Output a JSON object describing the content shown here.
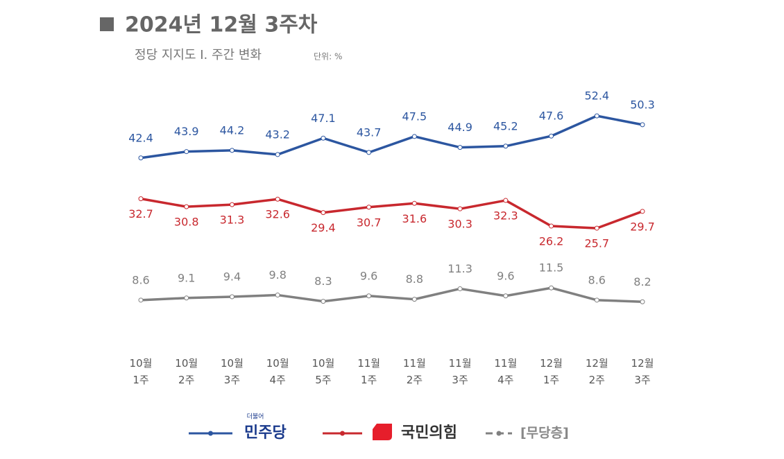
{
  "chart_data": {
    "type": "line",
    "title": "2024년 12월 3주차",
    "subtitle": "정당 지지도 Ⅰ. 주간 변화",
    "unit": "단위: %",
    "categories": [
      "10월 1주",
      "10월 2주",
      "10월 3주",
      "10월 4주",
      "10월 5주",
      "11월 1주",
      "11월 2주",
      "11월 3주",
      "11월 4주",
      "12월 1주",
      "12월 2주",
      "12월 3주"
    ],
    "ylim": [
      0,
      60
    ],
    "legend_note": "더불어",
    "series": [
      {
        "name": "민주당",
        "color": "#2c56a0",
        "label_side": "above",
        "values": [
          42.4,
          43.9,
          44.2,
          43.2,
          47.1,
          43.7,
          47.5,
          44.9,
          45.2,
          47.6,
          52.4,
          50.3
        ]
      },
      {
        "name": "국민의힘",
        "color": "#c8282e",
        "label_side": "below",
        "values": [
          32.7,
          30.8,
          31.3,
          32.6,
          29.4,
          30.7,
          31.6,
          30.3,
          32.3,
          26.2,
          25.7,
          29.7
        ]
      },
      {
        "name": "[무당층]",
        "color": "#808080",
        "label_side": "above",
        "values": [
          8.6,
          9.1,
          9.4,
          9.8,
          8.3,
          9.6,
          8.8,
          11.3,
          9.6,
          11.5,
          8.6,
          8.2
        ]
      }
    ]
  }
}
